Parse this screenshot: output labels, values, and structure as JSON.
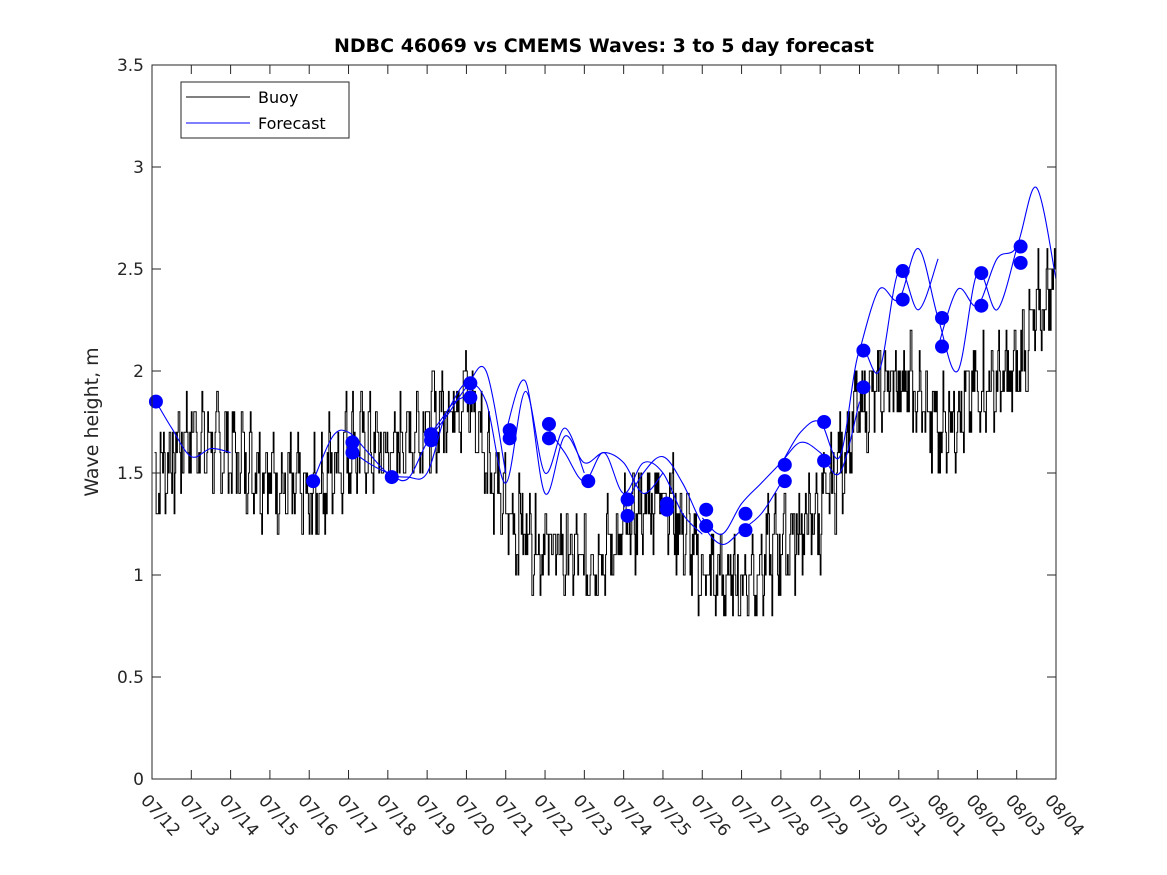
{
  "chart_data": {
    "type": "line",
    "title": "NDBC 46069 vs CMEMS Waves: 3 to 5 day forecast",
    "xlabel": "",
    "ylabel": "Wave height, m",
    "ylim": [
      0,
      3.5
    ],
    "xlim": [
      "07/12",
      "08/04"
    ],
    "x_tick_labels": [
      "07/12",
      "07/13",
      "07/14",
      "07/15",
      "07/16",
      "07/17",
      "07/18",
      "07/19",
      "07/20",
      "07/21",
      "07/22",
      "07/23",
      "07/24",
      "07/25",
      "07/26",
      "07/27",
      "07/28",
      "07/29",
      "07/30",
      "07/31",
      "08/01",
      "08/02",
      "08/03",
      "08/04"
    ],
    "y_tick_labels": [
      "0",
      "0.5",
      "1",
      "1.5",
      "2",
      "2.5",
      "3",
      "3.5"
    ],
    "y_ticks": [
      0,
      0.5,
      1,
      1.5,
      2,
      2.5,
      3,
      3.5
    ],
    "grid": false,
    "legend": {
      "location": "top-left",
      "entries": [
        "Buoy",
        "Forecast"
      ]
    },
    "colors": {
      "buoy": "#000000",
      "forecast": "#0000ff",
      "marker": "#0000ff"
    },
    "buoy": {
      "name": "Buoy",
      "x_day": [
        0.0,
        1.0,
        2.0,
        3.0,
        4.0,
        5.0,
        6.0,
        7.0,
        8.0,
        9.0,
        10.0,
        11.0,
        12.0,
        13.0,
        14.0,
        15.0,
        16.0,
        17.0,
        18.0,
        19.0,
        20.0,
        21.0,
        22.0,
        23.0
      ],
      "values": [
        1.45,
        1.7,
        1.6,
        1.5,
        1.35,
        1.65,
        1.6,
        1.75,
        1.9,
        1.3,
        1.15,
        1.05,
        1.2,
        1.45,
        1.0,
        0.95,
        1.15,
        1.3,
        1.8,
        2.0,
        1.7,
        1.9,
        2.0,
        2.5
      ]
    },
    "forecast_runs": [
      {
        "name": "Forecast",
        "x_day": [
          0.1,
          0.5,
          1.0,
          1.5,
          2.0
        ],
        "values": [
          1.85,
          1.72,
          1.58,
          1.62,
          1.6
        ]
      },
      {
        "name": "Forecast",
        "x_day": [
          4.1,
          4.6,
          5.0,
          5.5,
          6.0,
          6.5,
          7.0,
          7.5,
          8.0
        ],
        "values": [
          1.46,
          1.68,
          1.7,
          1.6,
          1.5,
          1.48,
          1.5,
          1.8,
          1.88
        ]
      },
      {
        "name": "Forecast",
        "x_day": [
          5.0,
          5.5,
          6.0,
          6.5,
          7.0,
          7.5,
          8.0,
          8.5,
          9.0
        ],
        "values": [
          1.62,
          1.55,
          1.5,
          1.47,
          1.65,
          1.78,
          1.92,
          2.0,
          1.5
        ]
      },
      {
        "name": "Forecast",
        "x_day": [
          7.0,
          7.5,
          8.0,
          8.5,
          9.0,
          9.5,
          10.0,
          10.5,
          11.0
        ],
        "values": [
          1.67,
          1.8,
          1.94,
          1.85,
          1.45,
          1.9,
          1.5,
          1.72,
          1.5
        ]
      },
      {
        "name": "Forecast",
        "x_day": [
          9.0,
          9.5,
          10.0,
          10.5,
          11.0,
          11.5,
          12.0,
          12.5,
          13.0
        ],
        "values": [
          1.7,
          1.95,
          1.4,
          1.68,
          1.55,
          1.6,
          1.55,
          1.4,
          1.5
        ]
      },
      {
        "name": "Forecast",
        "x_day": [
          10.0,
          10.5,
          11.0,
          11.5,
          12.0,
          12.5,
          13.0,
          13.5,
          14.0
        ],
        "values": [
          1.74,
          1.6,
          1.46,
          1.6,
          1.4,
          1.55,
          1.5,
          1.3,
          1.2
        ]
      },
      {
        "name": "Forecast",
        "x_day": [
          12.0,
          12.5,
          13.0,
          13.5,
          14.0,
          14.5,
          15.0,
          15.5,
          16.0
        ],
        "values": [
          1.33,
          1.5,
          1.58,
          1.45,
          1.25,
          1.15,
          1.22,
          1.3,
          1.45
        ]
      },
      {
        "name": "Forecast",
        "x_day": [
          14.0,
          14.5,
          15.0,
          15.5,
          16.0,
          16.5,
          17.0,
          17.5,
          18.0
        ],
        "values": [
          1.28,
          1.2,
          1.35,
          1.45,
          1.55,
          1.65,
          1.6,
          1.5,
          1.85
        ]
      },
      {
        "name": "Forecast",
        "x_day": [
          16.0,
          16.5,
          17.0,
          17.5,
          18.0,
          18.5,
          19.0,
          19.5,
          20.0
        ],
        "values": [
          1.54,
          1.7,
          1.75,
          1.58,
          2.1,
          2.0,
          2.49,
          2.3,
          2.55
        ]
      },
      {
        "name": "Forecast",
        "x_day": [
          18.0,
          18.5,
          19.0,
          19.5,
          20.0,
          20.5,
          21.0,
          21.5,
          22.0
        ],
        "values": [
          2.1,
          2.4,
          2.35,
          2.6,
          2.26,
          2.0,
          2.48,
          2.3,
          2.6
        ]
      },
      {
        "name": "Forecast",
        "x_day": [
          20.0,
          20.5,
          21.0,
          21.5,
          22.0,
          22.5,
          23.0
        ],
        "values": [
          2.12,
          2.4,
          2.32,
          2.55,
          2.61,
          2.9,
          2.45
        ]
      }
    ],
    "forecast_markers": [
      {
        "x_day": 0.1,
        "value": 1.85
      },
      {
        "x_day": 4.1,
        "value": 1.46
      },
      {
        "x_day": 5.1,
        "value": 1.65
      },
      {
        "x_day": 5.1,
        "value": 1.6
      },
      {
        "x_day": 6.1,
        "value": 1.48
      },
      {
        "x_day": 7.1,
        "value": 1.69
      },
      {
        "x_day": 7.1,
        "value": 1.66
      },
      {
        "x_day": 8.1,
        "value": 1.94
      },
      {
        "x_day": 8.1,
        "value": 1.87
      },
      {
        "x_day": 9.1,
        "value": 1.71
      },
      {
        "x_day": 9.1,
        "value": 1.67
      },
      {
        "x_day": 10.1,
        "value": 1.74
      },
      {
        "x_day": 10.1,
        "value": 1.67
      },
      {
        "x_day": 11.1,
        "value": 1.46
      },
      {
        "x_day": 12.1,
        "value": 1.37
      },
      {
        "x_day": 12.1,
        "value": 1.29
      },
      {
        "x_day": 13.1,
        "value": 1.35
      },
      {
        "x_day": 13.1,
        "value": 1.32
      },
      {
        "x_day": 14.1,
        "value": 1.32
      },
      {
        "x_day": 14.1,
        "value": 1.24
      },
      {
        "x_day": 15.1,
        "value": 1.3
      },
      {
        "x_day": 15.1,
        "value": 1.22
      },
      {
        "x_day": 16.1,
        "value": 1.54
      },
      {
        "x_day": 16.1,
        "value": 1.46
      },
      {
        "x_day": 17.1,
        "value": 1.75
      },
      {
        "x_day": 17.1,
        "value": 1.56
      },
      {
        "x_day": 18.1,
        "value": 2.1
      },
      {
        "x_day": 18.1,
        "value": 1.92
      },
      {
        "x_day": 19.1,
        "value": 2.49
      },
      {
        "x_day": 19.1,
        "value": 2.35
      },
      {
        "x_day": 20.1,
        "value": 2.26
      },
      {
        "x_day": 20.1,
        "value": 2.12
      },
      {
        "x_day": 21.1,
        "value": 2.48
      },
      {
        "x_day": 21.1,
        "value": 2.32
      },
      {
        "x_day": 22.1,
        "value": 2.61
      },
      {
        "x_day": 22.1,
        "value": 2.53
      }
    ]
  }
}
